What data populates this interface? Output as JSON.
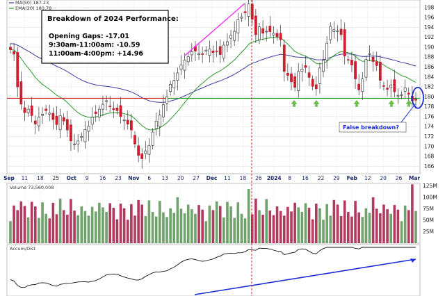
{
  "colors": {
    "up": "#2b8a2b",
    "down": "#cc1f2f",
    "ma50": "#3b3b9e",
    "ema20": "#2a9a2a",
    "support": "#1e9a1e",
    "resistance": "#d42020",
    "trend_pink": "#ee33ee",
    "earnings_line": "#e01010",
    "vol_up": "#6fa36b",
    "vol_down": "#b23a5f",
    "arrow_blue": "#1b2bd6",
    "green_arrow": "#6bbf4a"
  },
  "chart_data": [
    {
      "type": "candlestick",
      "legend": [
        {
          "label": "MA(50) 187.23",
          "color": "#3b3b9e"
        },
        {
          "label": "EMA(20) 183.78",
          "color": "#2a9a2a"
        }
      ],
      "y_ticks": [
        166,
        168,
        170,
        172,
        174,
        176,
        178,
        180,
        182,
        184,
        186,
        188,
        190,
        192,
        194,
        196,
        198
      ],
      "ylim": [
        164.5,
        199.5
      ],
      "x_ticks": [
        "Sep",
        "11",
        "18",
        "25",
        "Oct",
        "9",
        "16",
        "23",
        "Nov",
        "6",
        "13",
        "20",
        "27",
        "Dec",
        "11",
        "18",
        "26",
        "2024",
        "8",
        "16",
        "22",
        "29",
        "Feb",
        "12",
        "20",
        "26",
        "Mar"
      ],
      "support_level": 179.7,
      "resistance_level": 179.7,
      "annotation": {
        "title": "Breakdown of 2024 Performance:",
        "lines": [
          "Opening Gaps:  -17.01",
          "9:30am-11:00am:  -10.59",
          "11:00am-4:00pm:  +14.96"
        ]
      },
      "callout": "False breakdown?",
      "candles_close": [
        189.5,
        188.6,
        182,
        178.5,
        176.8,
        177.5,
        176.2,
        174.5,
        175.9,
        176.5,
        177.2,
        176.7,
        175.4,
        174.4,
        176.2,
        175.1,
        173.3,
        171.1,
        170.5,
        171.1,
        172,
        173.4,
        174.1,
        175.9,
        176.6,
        177.5,
        178.5,
        179.2,
        178,
        177.4,
        177.2,
        176,
        175.3,
        174.5,
        173.3,
        170.5,
        168.2,
        167.5,
        169.1,
        170.2,
        172.9,
        175.1,
        176.3,
        178.4,
        180,
        182.5,
        183.3,
        184.8,
        186.4,
        187.4,
        188.1,
        189.1,
        189.2,
        188.7,
        188.5,
        189.4,
        189.6,
        188.9,
        189.1,
        188.5,
        190.4,
        191.1,
        192.4,
        193.2,
        195.5,
        196.1,
        196.9,
        198.7,
        195.6,
        192.5,
        194.1,
        192.8,
        193.2,
        193.1,
        192.8,
        192.1,
        191.5,
        185.1,
        184.3,
        183,
        181.9,
        185.1,
        185.6,
        185.9,
        183.9,
        182.1,
        181.6,
        185.8,
        187.4,
        190.8,
        194.2,
        193.5,
        193.3,
        192.5,
        188.2,
        187.4,
        186.4,
        183.6,
        181.4,
        183.6,
        187.5,
        188.7,
        187.1,
        186.3,
        183.3,
        182.1,
        181.5,
        182.4,
        181,
        180.3,
        180.4,
        181.8,
        180.5,
        179.2,
        179.3
      ],
      "volume_label": "Volume 73,560,008",
      "volume_ticks": [
        "125M",
        "100M",
        "75M",
        "50M",
        "25M"
      ],
      "volume_ylim_millions": [
        0,
        130
      ],
      "indicator_label": "Accum/Dist"
    }
  ]
}
